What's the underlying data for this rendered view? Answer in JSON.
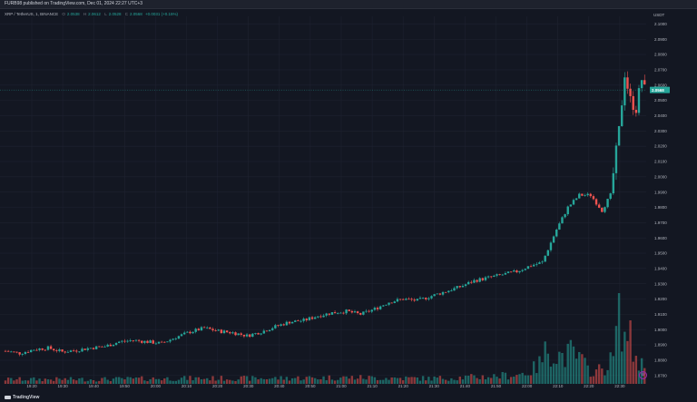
{
  "header": {
    "publisher": "FURB98 published on TradingView.com, Dec 01, 2024 22:27 UTC+3"
  },
  "legend": {
    "symbol": "XRP / TetherUS, 1, BINANCE",
    "o_label": "O",
    "o_val": "2.0538",
    "h_label": "H",
    "h_val": "2.0612",
    "l_label": "L",
    "l_val": "2.0528",
    "c_label": "C",
    "c_val": "2.0568",
    "change": "+0.0031 (+0.15%)"
  },
  "price_axis": {
    "unit": "USDT",
    "current_price": "2.0568",
    "current_color": "#26a69a"
  },
  "footer": {
    "brand": "TradingView"
  },
  "colors": {
    "up": "#26a69a",
    "down": "#ef5350",
    "bg": "#131722",
    "grid": "#1e2230"
  },
  "chart_data": {
    "type": "candlestick",
    "symbol": "XRP / TetherUS",
    "interval": "1",
    "y_ticks": [
      2.1,
      2.09,
      2.08,
      2.07,
      2.06,
      2.05,
      2.04,
      2.03,
      2.02,
      2.01,
      2.0,
      1.99,
      1.98,
      1.97,
      1.96,
      1.95,
      1.94,
      1.93,
      1.92,
      1.91,
      1.9,
      1.89,
      1.88,
      1.87
    ],
    "x_ticks": [
      "19:20",
      "19:30",
      "19:40",
      "19:50",
      "20:00",
      "20:10",
      "20:20",
      "20:30",
      "20:40",
      "20:50",
      "21:00",
      "21:10",
      "21:20",
      "21:30",
      "21:40",
      "21:50",
      "22:00",
      "22:10",
      "22:20",
      "22:30"
    ],
    "ylim": [
      1.8645,
      2.105
    ],
    "close_anchors": [
      [
        0,
        1.886
      ],
      [
        5,
        1.8845
      ],
      [
        10,
        1.887
      ],
      [
        15,
        1.888
      ],
      [
        20,
        1.8855
      ],
      [
        25,
        1.8865
      ],
      [
        30,
        1.888
      ],
      [
        35,
        1.889
      ],
      [
        40,
        1.892
      ],
      [
        45,
        1.893
      ],
      [
        50,
        1.892
      ],
      [
        55,
        1.891
      ],
      [
        60,
        1.895
      ],
      [
        65,
        1.8985
      ],
      [
        70,
        1.901
      ],
      [
        75,
        1.899
      ],
      [
        80,
        1.898
      ],
      [
        85,
        1.896
      ],
      [
        90,
        1.8985
      ],
      [
        95,
        1.902
      ],
      [
        100,
        1.905
      ],
      [
        105,
        1.906
      ],
      [
        110,
        1.909
      ],
      [
        115,
        1.911
      ],
      [
        120,
        1.912
      ],
      [
        125,
        1.91
      ],
      [
        130,
        1.9135
      ],
      [
        135,
        1.918
      ],
      [
        140,
        1.92
      ],
      [
        145,
        1.919
      ],
      [
        150,
        1.922
      ],
      [
        155,
        1.925
      ],
      [
        160,
        1.928
      ],
      [
        165,
        1.932
      ],
      [
        170,
        1.934
      ],
      [
        175,
        1.936
      ],
      [
        180,
        1.938
      ],
      [
        185,
        1.942
      ],
      [
        189,
        1.944
      ],
      [
        194,
        1.9655
      ],
      [
        198,
        1.98
      ],
      [
        202,
        1.988
      ],
      [
        206,
        1.988
      ],
      [
        210,
        1.978
      ],
      [
        213,
        1.988
      ],
      [
        216,
        2.03
      ],
      [
        218,
        2.068
      ],
      [
        220,
        2.05
      ],
      [
        222,
        2.045
      ],
      [
        224,
        2.064
      ],
      [
        225,
        2.0568
      ]
    ],
    "volume_anchors": [
      [
        0,
        0.05
      ],
      [
        30,
        0.05
      ],
      [
        60,
        0.06
      ],
      [
        90,
        0.06
      ],
      [
        120,
        0.07
      ],
      [
        150,
        0.06
      ],
      [
        170,
        0.08
      ],
      [
        180,
        0.1
      ],
      [
        185,
        0.14
      ],
      [
        188,
        0.22
      ],
      [
        191,
        0.4
      ],
      [
        194,
        0.32
      ],
      [
        197,
        0.3
      ],
      [
        199,
        0.34
      ],
      [
        202,
        0.28
      ],
      [
        205,
        0.16
      ],
      [
        208,
        0.14
      ],
      [
        211,
        0.18
      ],
      [
        214,
        0.28
      ],
      [
        216,
        0.9
      ],
      [
        218,
        0.48
      ],
      [
        219,
        0.62
      ],
      [
        221,
        0.34
      ],
      [
        223,
        0.25
      ],
      [
        225,
        0.18
      ]
    ]
  }
}
